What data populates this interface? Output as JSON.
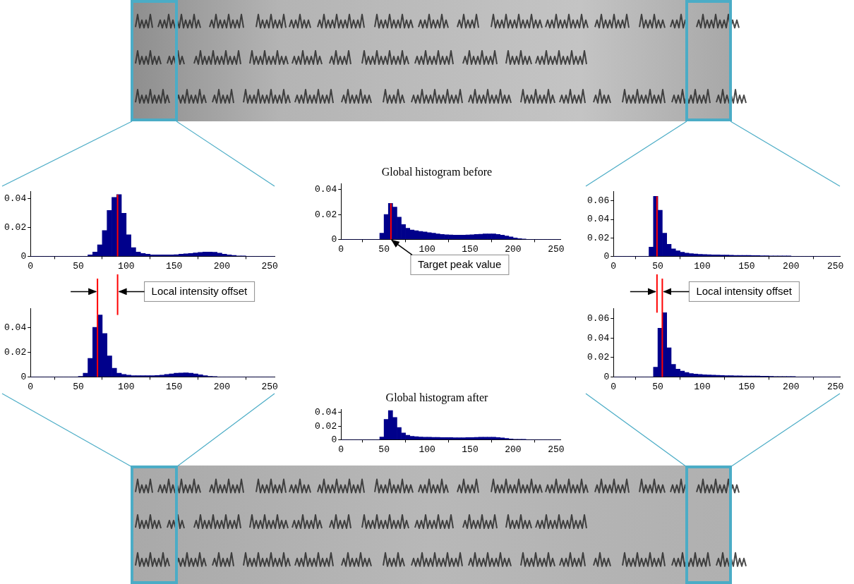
{
  "chart_data": [
    {
      "type": "histogram",
      "bins": [
        0,
        5,
        10,
        15,
        20,
        25,
        30,
        35,
        40,
        45,
        50,
        55,
        60,
        65,
        70,
        75,
        80,
        85,
        90,
        95,
        100,
        105,
        110,
        115,
        120,
        125,
        130,
        135,
        140,
        145,
        150,
        155,
        160,
        165,
        170,
        175,
        180,
        185,
        190,
        195,
        200,
        205,
        210,
        215,
        220,
        225,
        230,
        235,
        240,
        245,
        250,
        255
      ],
      "counts": [
        0,
        0,
        0,
        0,
        0,
        0,
        0,
        0,
        0,
        0,
        0,
        0,
        0.001,
        0.003,
        0.008,
        0.018,
        0.032,
        0.041,
        0.043,
        0.03,
        0.015,
        0.006,
        0.003,
        0.002,
        0.0015,
        0.001,
        0.001,
        0.001,
        0.001,
        0.001,
        0.0012,
        0.0015,
        0.0018,
        0.002,
        0.0024,
        0.0027,
        0.003,
        0.003,
        0.0028,
        0.0022,
        0.0015,
        0.001,
        0.0006,
        0.0003,
        0.0001,
        0,
        0,
        0,
        0,
        0,
        0
      ],
      "color": "#00008b",
      "xlim": [
        0,
        255
      ],
      "xticks": [
        0,
        50,
        100,
        150,
        200,
        250
      ],
      "ylim": [
        0,
        0.045
      ],
      "yticks": [
        0,
        0.02,
        0.04
      ],
      "grid": false,
      "peak": {
        "x": 91,
        "y": 0.043
      }
    },
    {
      "type": "histogram",
      "bins": [
        0,
        5,
        10,
        15,
        20,
        25,
        30,
        35,
        40,
        45,
        50,
        55,
        60,
        65,
        70,
        75,
        80,
        85,
        90,
        95,
        100,
        105,
        110,
        115,
        120,
        125,
        130,
        135,
        140,
        145,
        150,
        155,
        160,
        165,
        170,
        175,
        180,
        185,
        190,
        195,
        200,
        205,
        210,
        215,
        220,
        225,
        230,
        235,
        240,
        245,
        250,
        255
      ],
      "counts": [
        0,
        0,
        0,
        0,
        0,
        0,
        0,
        0,
        0,
        0,
        0.0005,
        0.003,
        0.015,
        0.04,
        0.05,
        0.035,
        0.017,
        0.007,
        0.003,
        0.002,
        0.0015,
        0.001,
        0.001,
        0.001,
        0.001,
        0.001,
        0.0012,
        0.0015,
        0.002,
        0.0025,
        0.003,
        0.0032,
        0.0033,
        0.003,
        0.0025,
        0.0018,
        0.001,
        0.0005,
        0.0002,
        0,
        0,
        0,
        0,
        0,
        0,
        0,
        0,
        0,
        0,
        0,
        0
      ],
      "color": "#00008b",
      "xlim": [
        0,
        255
      ],
      "xticks": [
        0,
        50,
        100,
        150,
        200,
        250
      ],
      "ylim": [
        0,
        0.055
      ],
      "yticks": [
        0,
        0.02,
        0.04
      ],
      "grid": false,
      "peak": {
        "x": 70,
        "y": 0.05
      }
    },
    {
      "type": "histogram",
      "title": "Global histogram before",
      "bins": [
        0,
        5,
        10,
        15,
        20,
        25,
        30,
        35,
        40,
        45,
        50,
        55,
        60,
        65,
        70,
        75,
        80,
        85,
        90,
        95,
        100,
        105,
        110,
        115,
        120,
        125,
        130,
        135,
        140,
        145,
        150,
        155,
        160,
        165,
        170,
        175,
        180,
        185,
        190,
        195,
        200,
        205,
        210,
        215,
        220,
        225,
        230,
        235,
        240,
        245,
        250,
        255
      ],
      "counts": [
        0,
        0,
        0,
        0,
        0,
        0,
        0,
        0,
        0,
        0.005,
        0.02,
        0.029,
        0.026,
        0.018,
        0.012,
        0.009,
        0.0075,
        0.007,
        0.0065,
        0.006,
        0.0055,
        0.005,
        0.0045,
        0.004,
        0.0038,
        0.0036,
        0.0035,
        0.0035,
        0.0035,
        0.0036,
        0.0038,
        0.004,
        0.0042,
        0.0044,
        0.0045,
        0.0044,
        0.004,
        0.0035,
        0.0028,
        0.002,
        0.0012,
        0.0006,
        0.0002,
        0,
        0,
        0,
        0,
        0,
        0,
        0,
        0
      ],
      "color": "#00008b",
      "xlim": [
        0,
        255
      ],
      "xticks": [
        0,
        50,
        100,
        150,
        200,
        250
      ],
      "ylim": [
        0,
        0.045
      ],
      "yticks": [
        0,
        0.02,
        0.04
      ],
      "grid": false,
      "peak": {
        "x": 58,
        "y": 0.029
      }
    },
    {
      "type": "histogram",
      "title": "Global histogram after",
      "bins": [
        0,
        5,
        10,
        15,
        20,
        25,
        30,
        35,
        40,
        45,
        50,
        55,
        60,
        65,
        70,
        75,
        80,
        85,
        90,
        95,
        100,
        105,
        110,
        115,
        120,
        125,
        130,
        135,
        140,
        145,
        150,
        155,
        160,
        165,
        170,
        175,
        180,
        185,
        190,
        195,
        200,
        205,
        210,
        215,
        220,
        225,
        230,
        235,
        240,
        245,
        250,
        255
      ],
      "counts": [
        0,
        0,
        0,
        0,
        0,
        0,
        0,
        0,
        0,
        0.004,
        0.03,
        0.043,
        0.033,
        0.018,
        0.01,
        0.0065,
        0.005,
        0.0045,
        0.004,
        0.0038,
        0.0036,
        0.0035,
        0.0034,
        0.0033,
        0.0032,
        0.0031,
        0.003,
        0.003,
        0.003,
        0.0031,
        0.0033,
        0.0035,
        0.0037,
        0.0038,
        0.0038,
        0.0036,
        0.0032,
        0.0026,
        0.0018,
        0.001,
        0.0005,
        0.0002,
        0.0001,
        0,
        0,
        0,
        0,
        0,
        0,
        0,
        0
      ],
      "color": "#00008b",
      "xlim": [
        0,
        255
      ],
      "xticks": [
        0,
        50,
        100,
        150,
        200,
        250
      ],
      "ylim": [
        0,
        0.045
      ],
      "yticks": [
        0,
        0.02,
        0.04
      ],
      "grid": false
    },
    {
      "type": "histogram",
      "bins": [
        0,
        5,
        10,
        15,
        20,
        25,
        30,
        35,
        40,
        45,
        50,
        55,
        60,
        65,
        70,
        75,
        80,
        85,
        90,
        95,
        100,
        105,
        110,
        115,
        120,
        125,
        130,
        135,
        140,
        145,
        150,
        155,
        160,
        165,
        170,
        175,
        180,
        185,
        190,
        195,
        200,
        205,
        210,
        215,
        220,
        225,
        230,
        235,
        240,
        245,
        250,
        255
      ],
      "counts": [
        0,
        0,
        0,
        0,
        0,
        0,
        0,
        0,
        0.01,
        0.065,
        0.05,
        0.025,
        0.013,
        0.008,
        0.006,
        0.0045,
        0.0035,
        0.003,
        0.0025,
        0.0022,
        0.002,
        0.0018,
        0.0016,
        0.0015,
        0.0014,
        0.0013,
        0.0012,
        0.0011,
        0.001,
        0.001,
        0.001,
        0.0009,
        0.0008,
        0.0007,
        0.0006,
        0.0005,
        0.0004,
        0.0003,
        0.0002,
        0.0001,
        0,
        0,
        0,
        0,
        0,
        0,
        0,
        0,
        0,
        0,
        0
      ],
      "color": "#00008b",
      "xlim": [
        0,
        255
      ],
      "xticks": [
        0,
        50,
        100,
        150,
        200,
        250
      ],
      "ylim": [
        0,
        0.07
      ],
      "yticks": [
        0,
        0.02,
        0.04,
        0.06
      ],
      "grid": false,
      "peak": {
        "x": 49,
        "y": 0.065
      }
    },
    {
      "type": "histogram",
      "bins": [
        0,
        5,
        10,
        15,
        20,
        25,
        30,
        35,
        40,
        45,
        50,
        55,
        60,
        65,
        70,
        75,
        80,
        85,
        90,
        95,
        100,
        105,
        110,
        115,
        120,
        125,
        130,
        135,
        140,
        145,
        150,
        155,
        160,
        165,
        170,
        175,
        180,
        185,
        190,
        195,
        200,
        205,
        210,
        215,
        220,
        225,
        230,
        235,
        240,
        245,
        250,
        255
      ],
      "counts": [
        0,
        0,
        0,
        0,
        0,
        0,
        0,
        0,
        0,
        0.01,
        0.05,
        0.066,
        0.03,
        0.013,
        0.008,
        0.006,
        0.0045,
        0.0035,
        0.003,
        0.0025,
        0.0022,
        0.002,
        0.0018,
        0.0016,
        0.0015,
        0.0014,
        0.0013,
        0.0012,
        0.0011,
        0.001,
        0.001,
        0.001,
        0.0009,
        0.0008,
        0.0007,
        0.0006,
        0.0005,
        0.0004,
        0.0003,
        0.0002,
        0.0001,
        0,
        0,
        0,
        0,
        0,
        0,
        0,
        0,
        0,
        0
      ],
      "color": "#00008b",
      "xlim": [
        0,
        255
      ],
      "xticks": [
        0,
        50,
        100,
        150,
        200,
        250
      ],
      "ylim": [
        0,
        0.07
      ],
      "yticks": [
        0,
        0.02,
        0.04,
        0.06
      ],
      "grid": false,
      "peak": {
        "x": 55,
        "y": 0.066
      }
    }
  ],
  "annotations": [
    "Local intensity offset",
    "Target peak value",
    "Local intensity offset"
  ]
}
